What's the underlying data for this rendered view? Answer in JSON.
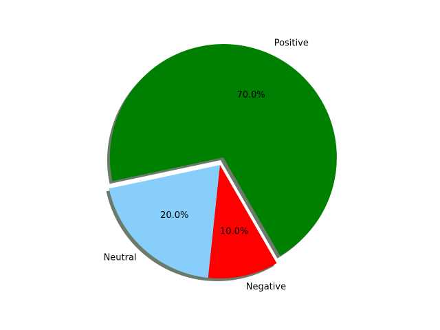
{
  "chart_data": {
    "type": "pie",
    "title": "",
    "slices": [
      {
        "label": "Positive",
        "value": 70,
        "pct_label": "70.0%",
        "color": "#008000",
        "exploded": true
      },
      {
        "label": "Neutral",
        "value": 20,
        "pct_label": "20.0%",
        "color": "#87cefa",
        "exploded": false
      },
      {
        "label": "Negative",
        "value": 10,
        "pct_label": "10.0%",
        "color": "#ff0000",
        "exploded": false
      }
    ],
    "shadow": true,
    "shadow_color": "#6b7a6b"
  }
}
